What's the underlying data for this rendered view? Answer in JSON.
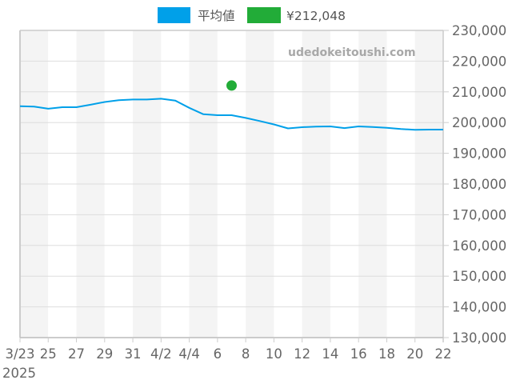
{
  "legend": {
    "items": [
      {
        "label": "平均値",
        "color": "#00a0e9"
      },
      {
        "label": "¥212,048",
        "color": "#22ac38"
      }
    ]
  },
  "watermark": "udedokeitoushi.com",
  "chart_data": {
    "type": "line",
    "title": "",
    "xlabel": "",
    "ylabel": "",
    "ylim": [
      130000,
      230000
    ],
    "y_axis_position": "right",
    "grid": true,
    "legend_position": "top",
    "x": [
      "3/23",
      "3/24",
      "3/25",
      "3/26",
      "3/27",
      "3/28",
      "3/29",
      "3/30",
      "3/31",
      "4/1",
      "4/2",
      "4/3",
      "4/4",
      "4/5",
      "4/6",
      "4/7",
      "4/8",
      "4/9",
      "4/10",
      "4/11",
      "4/12",
      "4/13",
      "4/14",
      "4/15",
      "4/16",
      "4/17",
      "4/18",
      "4/19",
      "4/20",
      "4/21",
      "4/22"
    ],
    "series": [
      {
        "name": "平均値",
        "color": "#00a0e9",
        "values": [
          205300,
          205200,
          204500,
          205000,
          205000,
          205800,
          206700,
          207300,
          207500,
          207500,
          207750,
          207150,
          204800,
          202700,
          202400,
          202400,
          201500,
          200500,
          199400,
          198100,
          198500,
          198700,
          198750,
          198200,
          198750,
          198550,
          198300,
          197900,
          197650,
          197700,
          197700
        ]
      }
    ],
    "points": [
      {
        "name": "¥212,048",
        "color": "#22ac38",
        "x": "4/7",
        "x_index": 15,
        "value": 212048
      }
    ],
    "xtick_labels": [
      "3/23",
      "25",
      "27",
      "29",
      "31",
      "4/2",
      "4/4",
      "6",
      "8",
      "10",
      "12",
      "14",
      "16",
      "18",
      "20",
      "22"
    ],
    "xtick_sublabel": "2025",
    "ytick_values": [
      130000,
      140000,
      150000,
      160000,
      170000,
      180000,
      190000,
      200000,
      210000,
      220000,
      230000
    ],
    "ytick_labels": [
      "130,000",
      "140,000",
      "150,000",
      "160,000",
      "170,000",
      "180,000",
      "190,000",
      "200,000",
      "210,000",
      "220,000",
      "230,000"
    ],
    "band_colors": [
      "#f4f4f4",
      "#ffffff"
    ]
  }
}
